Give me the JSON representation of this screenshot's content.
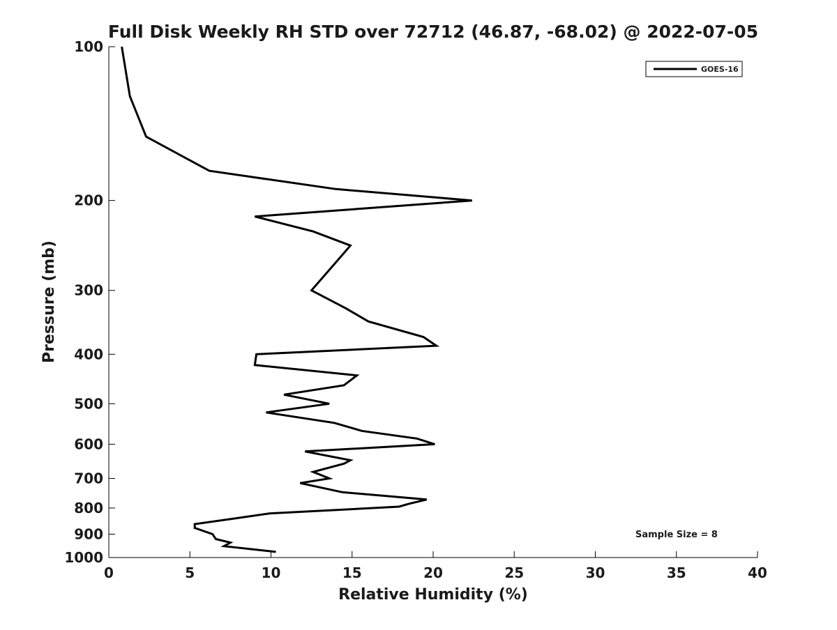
{
  "chart_data": {
    "type": "line",
    "title": "Full Disk Weekly RH STD over 72712 (46.87, -68.02) @ 2022-07-05",
    "xlabel": "Relative Humidity (%)",
    "ylabel": "Pressure (mb)",
    "xlim": [
      0,
      40
    ],
    "ylim": [
      1000,
      100
    ],
    "yscale": "log",
    "y_inverted": true,
    "grid": false,
    "legend_position": "top-right",
    "x_ticks": [
      "0",
      "5",
      "10",
      "15",
      "20",
      "25",
      "30",
      "35",
      "40"
    ],
    "y_ticks": [
      "100",
      "200",
      "300",
      "400",
      "500",
      "600",
      "700",
      "800",
      "900",
      "1000"
    ],
    "series": [
      {
        "name": "GOES-16",
        "color": "#000000",
        "points": [
          [
            0.8,
            100
          ],
          [
            1.3,
            125
          ],
          [
            2.3,
            150
          ],
          [
            6.2,
            175
          ],
          [
            14.0,
            190
          ],
          [
            22.4,
            200
          ],
          [
            9.0,
            215
          ],
          [
            12.6,
            230
          ],
          [
            14.9,
            245
          ],
          [
            14.2,
            260
          ],
          [
            12.5,
            300
          ],
          [
            14.6,
            325
          ],
          [
            16.0,
            345
          ],
          [
            19.4,
            370
          ],
          [
            20.2,
            385
          ],
          [
            9.1,
            400
          ],
          [
            9.0,
            420
          ],
          [
            15.3,
            440
          ],
          [
            14.5,
            460
          ],
          [
            10.8,
            480
          ],
          [
            13.6,
            500
          ],
          [
            9.7,
            520
          ],
          [
            13.9,
            545
          ],
          [
            15.6,
            565
          ],
          [
            19.0,
            585
          ],
          [
            20.1,
            600
          ],
          [
            12.1,
            620
          ],
          [
            14.9,
            645
          ],
          [
            14.5,
            655
          ],
          [
            12.6,
            680
          ],
          [
            13.6,
            700
          ],
          [
            11.8,
            715
          ],
          [
            14.4,
            745
          ],
          [
            19.6,
            770
          ],
          [
            18.5,
            785
          ],
          [
            17.9,
            795
          ],
          [
            9.9,
            820
          ],
          [
            7.6,
            840
          ],
          [
            5.3,
            860
          ],
          [
            5.3,
            875
          ],
          [
            6.4,
            900
          ],
          [
            6.6,
            920
          ],
          [
            7.5,
            935
          ],
          [
            7.1,
            950
          ],
          [
            10.3,
            975
          ]
        ]
      }
    ],
    "annotations": [
      {
        "text": "Sample Size = 8"
      }
    ]
  }
}
